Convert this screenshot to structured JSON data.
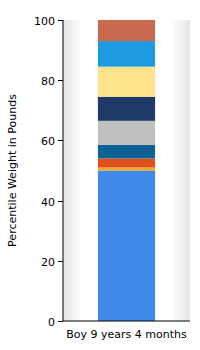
{
  "chart_data": {
    "type": "bar",
    "stacked": true,
    "y_label": "Percentile Weight in Pounds",
    "categories": [
      "Boy 9 years 4 months"
    ],
    "series": [
      {
        "color": "#4189e8",
        "values": [
          50
        ]
      },
      {
        "color": "#f5a623",
        "values": [
          1
        ]
      },
      {
        "color": "#e0501b",
        "values": [
          3
        ]
      },
      {
        "color": "#0e6194",
        "values": [
          4.5
        ]
      },
      {
        "color": "#c0c0c0",
        "values": [
          8
        ]
      },
      {
        "color": "#1f3a68",
        "values": [
          8
        ]
      },
      {
        "color": "#ffe38a",
        "values": [
          10
        ]
      },
      {
        "color": "#1e9be0",
        "values": [
          8.5
        ]
      },
      {
        "color": "#c96a4e",
        "values": [
          7
        ]
      }
    ],
    "ylim": [
      0,
      100
    ],
    "yticks": [
      0,
      20,
      40,
      60,
      80,
      100
    ],
    "grid": false
  }
}
